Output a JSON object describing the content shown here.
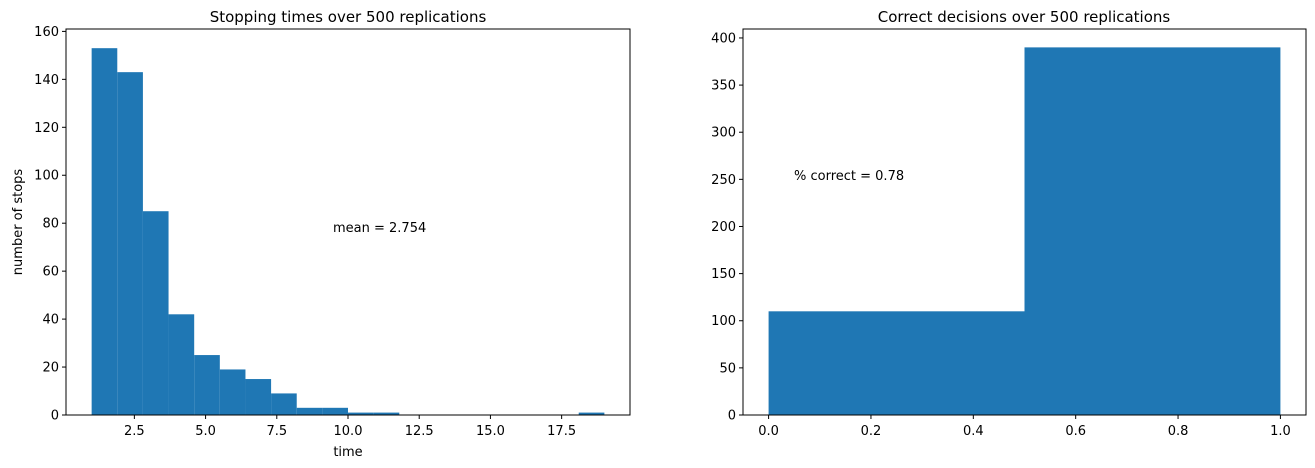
{
  "figure": {
    "background": "#ffffff",
    "bar_color": "#1f77b4"
  },
  "chart_data": [
    {
      "type": "bar",
      "subtype": "histogram",
      "title": "Stopping times over 500 replications",
      "xlabel": "time",
      "ylabel": "number of stops",
      "xlim": [
        0.1,
        19.9
      ],
      "ylim": [
        0,
        161
      ],
      "xticks": [
        2.5,
        5.0,
        7.5,
        10.0,
        12.5,
        15.0,
        17.5
      ],
      "xtick_labels": [
        "2.5",
        "5.0",
        "7.5",
        "10.0",
        "12.5",
        "15.0",
        "17.5"
      ],
      "yticks": [
        0,
        20,
        40,
        60,
        80,
        100,
        120,
        140,
        160
      ],
      "ytick_labels": [
        "0",
        "20",
        "40",
        "60",
        "80",
        "100",
        "120",
        "140",
        "160"
      ],
      "bin_edges": [
        1.0,
        1.9,
        2.8,
        3.7,
        4.6,
        5.5,
        6.4,
        7.3,
        8.2,
        9.1,
        10.0,
        10.9,
        11.8,
        12.7,
        13.6,
        14.5,
        15.4,
        16.3,
        17.2,
        18.1,
        19.0
      ],
      "values": [
        153,
        143,
        85,
        42,
        25,
        19,
        15,
        9,
        3,
        3,
        1,
        1,
        0,
        0,
        0,
        0,
        0,
        0,
        0,
        1
      ],
      "annotation": {
        "text": "mean = 2.754",
        "x": 9.6,
        "y": 76
      },
      "color": "#1f77b4"
    },
    {
      "type": "bar",
      "subtype": "histogram",
      "title": "Correct decisions over 500 replications",
      "xlabel": "",
      "ylabel": "",
      "xlim": [
        -0.05,
        1.05
      ],
      "ylim": [
        0,
        409.5
      ],
      "xticks": [
        0.0,
        0.2,
        0.4,
        0.6,
        0.8,
        1.0
      ],
      "xtick_labels": [
        "0.0",
        "0.2",
        "0.4",
        "0.6",
        "0.8",
        "1.0"
      ],
      "yticks": [
        0,
        50,
        100,
        150,
        200,
        250,
        300,
        350,
        400
      ],
      "ytick_labels": [
        "0",
        "50",
        "100",
        "150",
        "200",
        "250",
        "300",
        "350",
        "400"
      ],
      "bin_edges": [
        0.0,
        0.5,
        1.0
      ],
      "values": [
        110,
        390
      ],
      "annotation": {
        "text": "% correct = 0.78",
        "x": 0.05,
        "y": 250
      },
      "color": "#1f77b4"
    }
  ]
}
